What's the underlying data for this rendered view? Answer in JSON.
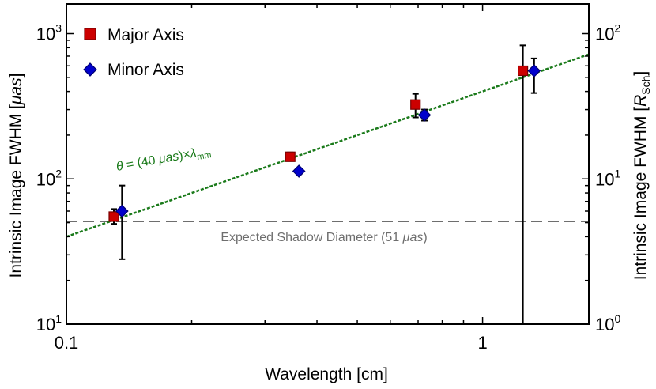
{
  "chart_data": {
    "type": "scatter",
    "xlabel": "Wavelength [cm]",
    "ylabel_left": "Intrinsic Image FWHM [",
    "ylabel_left_unit": "μas",
    "ylabel_left_close": "]",
    "ylabel_right": "Intrinsic Image FWHM [",
    "ylabel_right_unit": "R",
    "ylabel_right_sub": "Sch",
    "ylabel_right_close": "]",
    "x_scale": "log",
    "y_scale": "log",
    "xlim": [
      0.1,
      1.8
    ],
    "ylim": [
      10,
      1600
    ],
    "ylim_right": [
      1,
      160
    ],
    "x_ticks": [
      {
        "value": 0.1,
        "label": "0.1"
      },
      {
        "value": 1,
        "label": "1"
      }
    ],
    "y_ticks": [
      {
        "value": 10,
        "base": "10",
        "exp": "1"
      },
      {
        "value": 100,
        "base": "10",
        "exp": "2"
      },
      {
        "value": 1000,
        "base": "10",
        "exp": "3"
      }
    ],
    "y_ticks_right": [
      {
        "value": 1,
        "base": "10",
        "exp": "0"
      },
      {
        "value": 10,
        "base": "10",
        "exp": "1"
      },
      {
        "value": 100,
        "base": "10",
        "exp": "2"
      }
    ],
    "legend_position": "top-left",
    "series": [
      {
        "name": "Major Axis",
        "marker": "square",
        "color": "#cc0000",
        "points": [
          {
            "x": 0.13,
            "y": 55,
            "y_low": 49,
            "y_high": 62
          },
          {
            "x": 0.345,
            "y": 142,
            "y_low": 134,
            "y_high": 152
          },
          {
            "x": 0.69,
            "y": 325,
            "y_low": 265,
            "y_high": 385
          },
          {
            "x": 1.25,
            "y": 555,
            "y_low": 0.5,
            "y_high": 830
          }
        ]
      },
      {
        "name": "Minor Axis",
        "marker": "diamond",
        "color": "#0000cc",
        "points": [
          {
            "x": 0.136,
            "y": 60,
            "y_low": 28,
            "y_high": 90
          },
          {
            "x": 0.362,
            "y": 113,
            "y_low": 108,
            "y_high": 118
          },
          {
            "x": 0.725,
            "y": 275,
            "y_low": 252,
            "y_high": 300
          },
          {
            "x": 1.33,
            "y": 555,
            "y_low": 390,
            "y_high": 675
          }
        ]
      }
    ],
    "fit_line": {
      "coefficient": 400,
      "color": "#1a7a1a",
      "label_theta": "θ",
      "label_eq": " = (40 ",
      "label_unit": "μas",
      "label_times": ")×",
      "label_lambda": "λ",
      "label_sub": "mm"
    },
    "reference_line": {
      "y": 51,
      "color": "#6e6e6e",
      "label_pre": "Expected Shadow Diameter (51 ",
      "label_unit": "μas",
      "label_post": ")"
    }
  }
}
